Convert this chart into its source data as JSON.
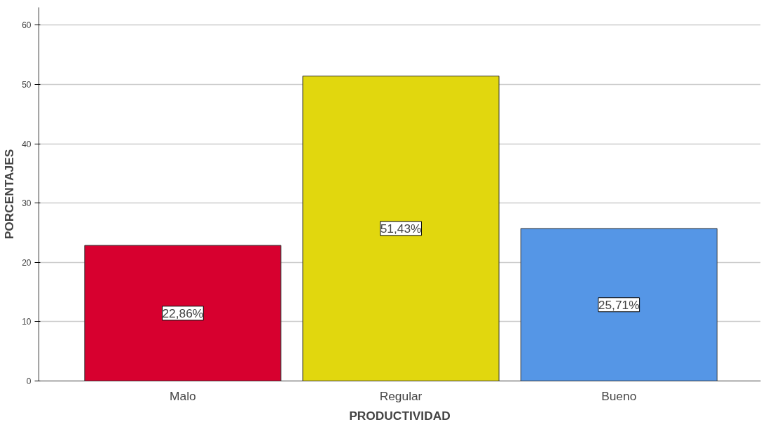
{
  "chart_data": {
    "type": "bar",
    "xlabel": "PRODUCTIVIDAD",
    "ylabel": "PORCENTAJES",
    "categories": [
      "Malo",
      "Regular",
      "Bueno"
    ],
    "values": [
      22.86,
      51.43,
      25.71
    ],
    "colors": [
      "#d7002f",
      "#e1d70e",
      "#5596e6"
    ],
    "value_labels": [
      "22,86%",
      "51,43%",
      "25,71%"
    ],
    "ylim": [
      0,
      63
    ],
    "yticks": [
      0,
      10,
      20,
      30,
      40,
      50,
      60
    ],
    "grid": "y"
  }
}
